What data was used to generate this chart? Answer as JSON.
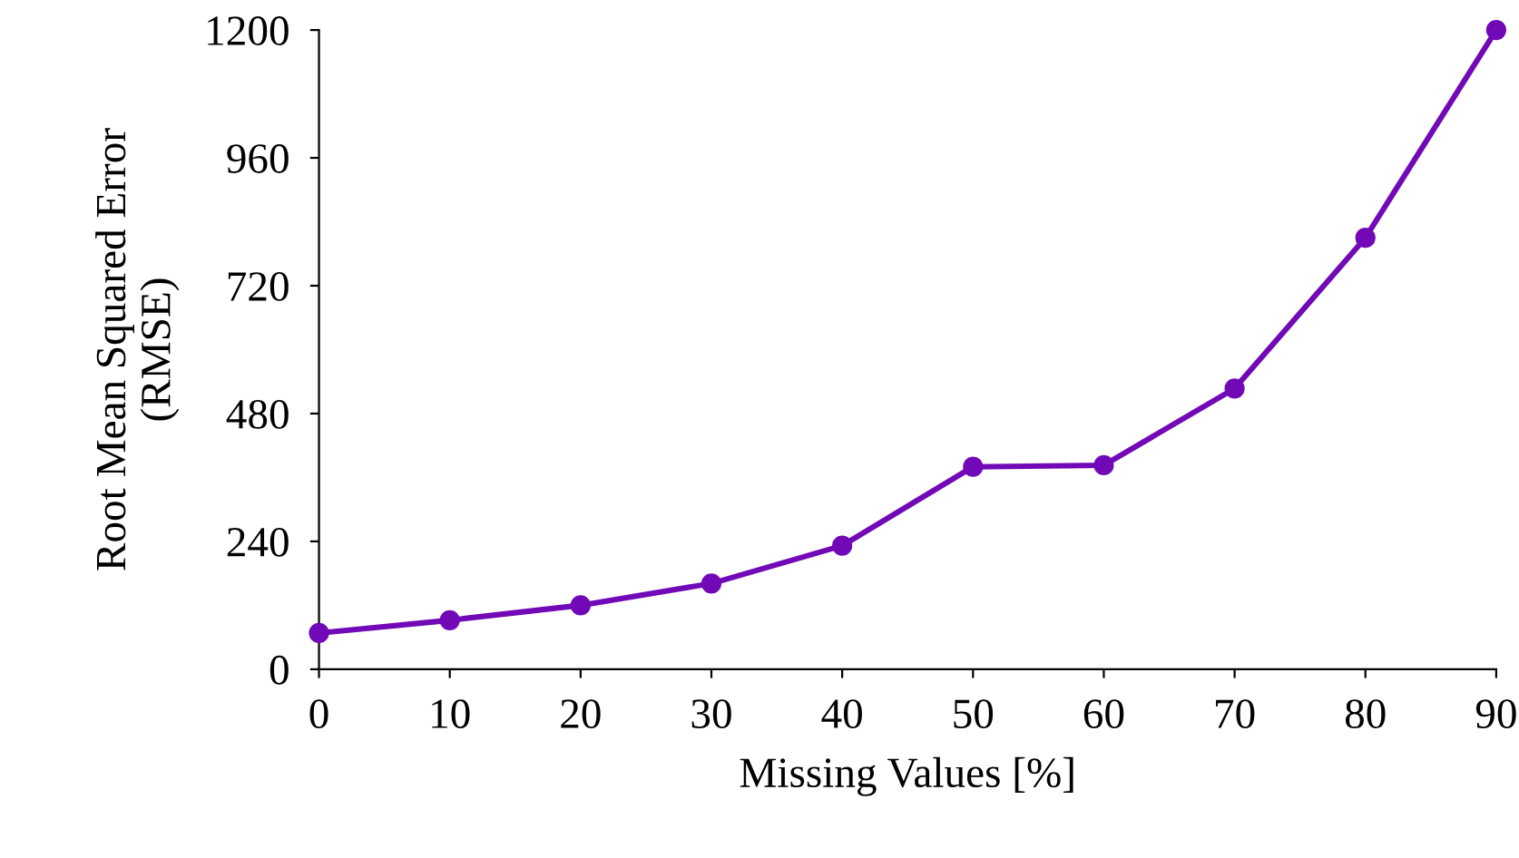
{
  "chart_data": {
    "type": "line",
    "xlabel": "Missing Values [%]",
    "ylabel": "Root Mean Squared Error\n(RMSE)",
    "x": [
      0,
      10,
      20,
      30,
      40,
      50,
      60,
      70,
      80,
      90
    ],
    "series": [
      {
        "color": "#7209b7",
        "values": [
          68,
          92,
          120,
          161,
          232,
          380,
          383,
          527,
          810,
          1200
        ]
      }
    ],
    "xlim": [
      0,
      90
    ],
    "xticks": [
      0,
      10,
      20,
      30,
      40,
      50,
      60,
      70,
      80,
      90
    ],
    "ylim": [
      0,
      1200
    ],
    "yticks": [
      0,
      240,
      480,
      720,
      960,
      1200
    ],
    "grid": false,
    "legend": false,
    "marker": "circle",
    "line_style": "solid"
  }
}
